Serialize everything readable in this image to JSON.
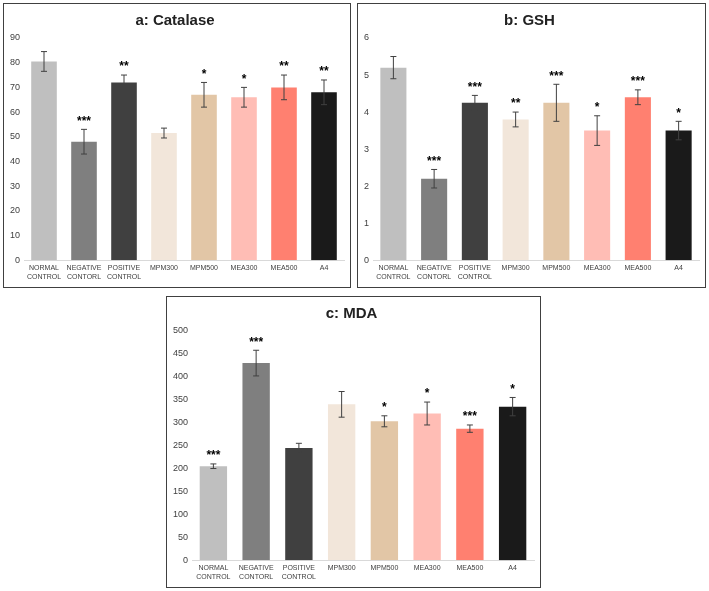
{
  "chart_data": [
    {
      "type": "bar",
      "title": "a: Catalase",
      "categories": [
        "NORMAL CONTROL",
        "NEGATIVE CONTORL",
        "POSITIVE CONTROL",
        "MPM300",
        "MPM500",
        "MEA300",
        "MEA500",
        "A4"
      ],
      "values": [
        80.5,
        48,
        72,
        51.5,
        67,
        66,
        70,
        68
      ],
      "errors": [
        4,
        5,
        3,
        2,
        5,
        4,
        5,
        5
      ],
      "significance": [
        null,
        "***",
        "**",
        null,
        "*",
        "*",
        "**",
        "**"
      ],
      "colors": [
        "#bfbfbf",
        "#7f7f7f",
        "#404040",
        "#f2e6da",
        "#e2c6a6",
        "#ffbdb5",
        "#ff8070",
        "#1a1a1a"
      ],
      "ylim": [
        0,
        90
      ],
      "yticks": [
        0,
        10,
        20,
        30,
        40,
        50,
        60,
        70,
        80,
        90
      ],
      "grid": false
    },
    {
      "type": "bar",
      "title": "b: GSH",
      "categories": [
        "NORMAL CONTROL",
        "NEGATIVE CONTORL",
        "POSITIVE CONTROL",
        "MPM300",
        "MPM500",
        "MEA300",
        "MEA500",
        "A4"
      ],
      "values": [
        5.2,
        2.2,
        4.25,
        3.8,
        4.25,
        3.5,
        4.4,
        3.5
      ],
      "errors": [
        0.3,
        0.25,
        0.2,
        0.2,
        0.5,
        0.4,
        0.2,
        0.25
      ],
      "significance": [
        null,
        "***",
        "***",
        "**",
        "***",
        "*",
        "***",
        "*"
      ],
      "colors": [
        "#bfbfbf",
        "#7f7f7f",
        "#404040",
        "#f2e6da",
        "#e2c6a6",
        "#ffbdb5",
        "#ff8070",
        "#1a1a1a"
      ],
      "ylim": [
        0,
        6
      ],
      "yticks": [
        0,
        1,
        2,
        3,
        4,
        5,
        6
      ],
      "grid": false
    },
    {
      "type": "bar",
      "title": "c: MDA",
      "categories": [
        "NORMAL CONTROL",
        "NEGATIVE CONTORL",
        "POSITIVE CONTROL",
        "MPM300",
        "MPM500",
        "MEA300",
        "MEA500",
        "A4"
      ],
      "values": [
        205,
        430,
        245,
        340,
        303,
        320,
        287,
        335
      ],
      "errors": [
        5,
        28,
        10,
        28,
        12,
        25,
        8,
        20
      ],
      "significance": [
        "***",
        "***",
        null,
        null,
        "*",
        "*",
        "***",
        "*"
      ],
      "colors": [
        "#bfbfbf",
        "#7f7f7f",
        "#404040",
        "#f2e6da",
        "#e2c6a6",
        "#ffbdb5",
        "#ff8070",
        "#1a1a1a"
      ],
      "ylim": [
        0,
        500
      ],
      "yticks": [
        0,
        50,
        100,
        150,
        200,
        250,
        300,
        350,
        400,
        450,
        500
      ],
      "grid": false
    }
  ]
}
